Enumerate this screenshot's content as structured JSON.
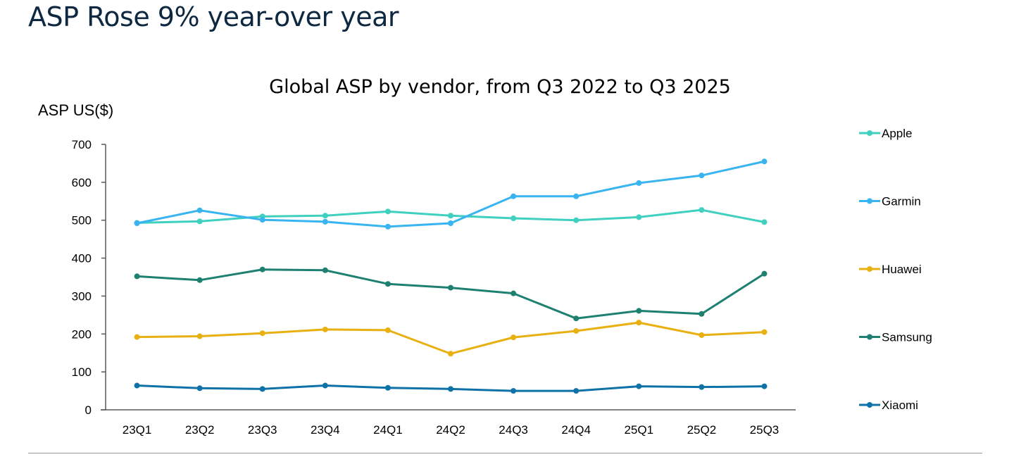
{
  "slide_title": "ASP Rose 9% year-over year",
  "chart_data": {
    "type": "line",
    "title": "Global ASP by vendor, from Q3 2022 to Q3 2025",
    "xlabel": "",
    "ylabel": "ASP US($)",
    "ylim": [
      0,
      700
    ],
    "yticks": [
      0,
      100,
      200,
      300,
      400,
      500,
      600,
      700
    ],
    "grid": false,
    "legend": "right",
    "categories": [
      "23Q1",
      "23Q2",
      "23Q3",
      "23Q4",
      "24Q1",
      "24Q2",
      "24Q3",
      "24Q4",
      "25Q1",
      "25Q2",
      "25Q3"
    ],
    "series": [
      {
        "name": "Apple",
        "color": "#3fd0c0",
        "values": [
          493,
          497,
          510,
          512,
          523,
          512,
          505,
          500,
          508,
          527,
          495
        ]
      },
      {
        "name": "Garmin",
        "color": "#38b4f0",
        "values": [
          492,
          526,
          501,
          496,
          483,
          492,
          563,
          563,
          598,
          618,
          655
        ]
      },
      {
        "name": "Huawei",
        "color": "#e8b010",
        "values": [
          192,
          194,
          202,
          212,
          210,
          148,
          191,
          208,
          230,
          197,
          205
        ]
      },
      {
        "name": "Samsung",
        "color": "#1e8070",
        "values": [
          352,
          342,
          370,
          368,
          332,
          322,
          307,
          241,
          261,
          253,
          359
        ]
      },
      {
        "name": "Xiaomi",
        "color": "#0e72a8",
        "values": [
          64,
          57,
          55,
          64,
          58,
          55,
          50,
          50,
          62,
          60,
          62
        ]
      }
    ]
  }
}
